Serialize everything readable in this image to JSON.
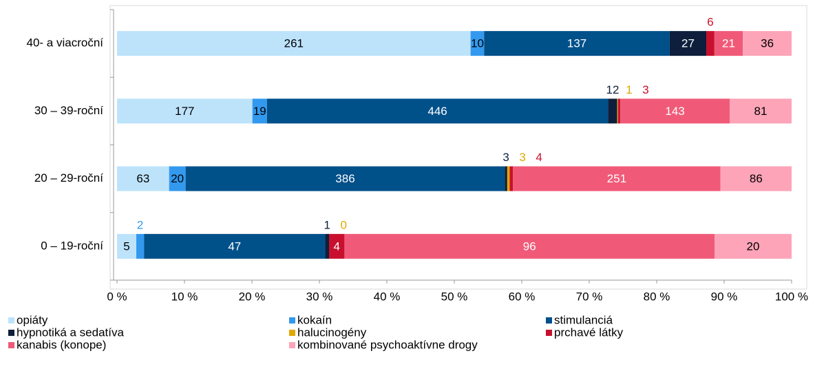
{
  "chart_data": {
    "type": "bar",
    "orientation": "horizontal",
    "stacking": "percent",
    "categories": [
      "40- a viacroční",
      "30 – 39-roční",
      "20 – 29-roční",
      "0 – 19-roční"
    ],
    "series": [
      {
        "name": "opiáty",
        "color": "#bde3fb",
        "label_color": "#000000",
        "values": [
          261,
          177,
          63,
          5
        ]
      },
      {
        "name": "kokaín",
        "color": "#3399ee",
        "label_color": "#000000",
        "values": [
          10,
          19,
          20,
          2
        ]
      },
      {
        "name": "stimulanciá",
        "color": "#00508a",
        "label_color": "#ffffff",
        "values": [
          137,
          446,
          386,
          47
        ]
      },
      {
        "name": "hypnotiká a sedatíva",
        "color": "#0d1f3c",
        "label_color": "#ffffff",
        "values": [
          27,
          12,
          3,
          1
        ]
      },
      {
        "name": "halucinogény",
        "color": "#e0a800",
        "label_color": "#000000",
        "values": [
          null,
          1,
          3,
          0
        ]
      },
      {
        "name": "prchavé látky",
        "color": "#c8102e",
        "label_color": "#ffffff",
        "values": [
          6,
          3,
          4,
          4
        ]
      },
      {
        "name": "kanabis (konope)",
        "color": "#f05a78",
        "label_color": "#ffffff",
        "values": [
          21,
          143,
          251,
          96
        ]
      },
      {
        "name": "kombinované psychoaktívne drogy",
        "color": "#fda4b8",
        "label_color": "#000000",
        "values": [
          36,
          81,
          86,
          20
        ]
      }
    ],
    "xlim": [
      0,
      100
    ],
    "xticks": [
      {
        "value": 0,
        "label": "0 %"
      },
      {
        "value": 10,
        "label": "10 %"
      },
      {
        "value": 20,
        "label": "20 %"
      },
      {
        "value": 30,
        "label": "30 %"
      },
      {
        "value": 40,
        "label": "40 %"
      },
      {
        "value": 50,
        "label": "50 %"
      },
      {
        "value": 60,
        "label": "60 %"
      },
      {
        "value": 70,
        "label": "70 %"
      },
      {
        "value": 80,
        "label": "80 %"
      },
      {
        "value": 90,
        "label": "90 %"
      },
      {
        "value": 100,
        "label": "100 %"
      }
    ],
    "legend": "bottom",
    "grid": false
  }
}
